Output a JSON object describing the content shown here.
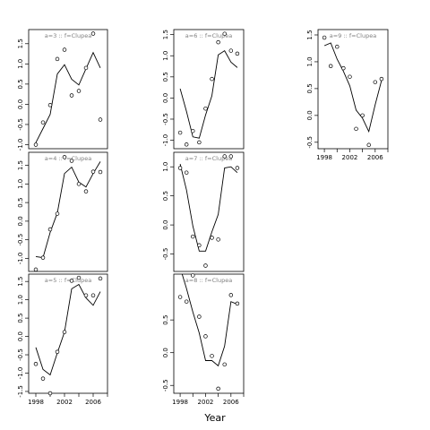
{
  "figure": {
    "xlabel": "Year"
  },
  "chart_data": [
    {
      "type": "line",
      "title": "a=3 :: f=Clupea",
      "xlim": [
        1997,
        2008
      ],
      "ylim": [
        -1.1,
        1.85
      ],
      "xticks": [
        1998,
        2002,
        2006
      ],
      "xtick_labels": [
        "1998",
        "2002",
        "2006"
      ],
      "show_xticks": false,
      "yticks": [
        -1.0,
        -0.5,
        0.0,
        0.5,
        1.0,
        1.5
      ],
      "ytick_labels": [
        "-1.0",
        "-0.5",
        "0.0",
        "0.5",
        "1.0",
        "1.5"
      ],
      "series": [
        {
          "type": "line",
          "x": [
            1998,
            1999,
            2000,
            2001,
            2002,
            2003,
            2004,
            2005,
            2006,
            2007
          ],
          "y": [
            -0.95,
            -0.6,
            -0.25,
            0.75,
            0.98,
            0.62,
            0.48,
            0.88,
            1.28,
            0.9
          ]
        },
        {
          "type": "scatter",
          "x": [
            1998,
            1999,
            2000,
            2001,
            2002,
            2003,
            2004,
            2005,
            2006,
            2007
          ],
          "y": [
            -1.0,
            -0.45,
            -0.02,
            1.12,
            1.35,
            0.22,
            0.33,
            0.9,
            1.75,
            -0.38
          ]
        }
      ]
    },
    {
      "type": "line",
      "title": "a=4 :: f=Clupea",
      "xlim": [
        1997,
        2008
      ],
      "ylim": [
        -1.35,
        1.85
      ],
      "xticks": [
        1998,
        2002,
        2006
      ],
      "xtick_labels": [
        "1998",
        "2002",
        "2006"
      ],
      "show_xticks": false,
      "yticks": [
        -1.0,
        -0.5,
        0.0,
        0.5,
        1.0,
        1.5
      ],
      "ytick_labels": [
        "-1.0",
        "-0.5",
        "0.0",
        "0.5",
        "1.0",
        "1.5"
      ],
      "series": [
        {
          "type": "line",
          "x": [
            1998,
            1999,
            2000,
            2001,
            2002,
            2003,
            2004,
            2005,
            2006,
            2007
          ],
          "y": [
            -0.95,
            -0.98,
            -0.3,
            0.22,
            1.28,
            1.45,
            1.05,
            0.92,
            1.28,
            1.6
          ]
        },
        {
          "type": "scatter",
          "x": [
            1998,
            1999,
            2000,
            2001,
            2002,
            2003,
            2004,
            2005,
            2006,
            2007
          ],
          "y": [
            -1.3,
            -0.98,
            -0.22,
            0.2,
            1.72,
            1.62,
            1.0,
            0.8,
            1.33,
            1.32
          ]
        }
      ]
    },
    {
      "type": "line",
      "title": "a=5 :: f=Clupea",
      "xlim": [
        1997,
        2008
      ],
      "ylim": [
        -1.55,
        1.7
      ],
      "xticks": [
        1998,
        2002,
        2006
      ],
      "xtick_labels": [
        "1998",
        "2002",
        "2006"
      ],
      "show_xticks": true,
      "yticks": [
        -1.5,
        -1.0,
        -0.5,
        0.0,
        0.5,
        1.0,
        1.5
      ],
      "ytick_labels": [
        "-1.5",
        "-1.0",
        "-0.5",
        "0.0",
        "0.5",
        "1.0",
        "1.5"
      ],
      "series": [
        {
          "type": "line",
          "x": [
            1998,
            1999,
            2000,
            2001,
            2002,
            2003,
            2004,
            2005,
            2006,
            2007
          ],
          "y": [
            -0.3,
            -0.9,
            -1.05,
            -0.45,
            0.12,
            1.3,
            1.42,
            1.05,
            0.85,
            1.22
          ]
        },
        {
          "type": "scatter",
          "x": [
            1998,
            1999,
            2000,
            2001,
            2002,
            2003,
            2004,
            2005,
            2006,
            2007
          ],
          "y": [
            -0.75,
            -1.15,
            -1.55,
            -0.42,
            0.12,
            1.52,
            1.6,
            1.12,
            1.12,
            1.58
          ]
        }
      ]
    },
    {
      "type": "line",
      "title": "a=6 :: f=Clupea",
      "xlim": [
        1997,
        2008
      ],
      "ylim": [
        -1.2,
        1.62
      ],
      "xticks": [
        1998,
        2002,
        2006
      ],
      "xtick_labels": [
        "1998",
        "2002",
        "2006"
      ],
      "show_xticks": false,
      "yticks": [
        -1.0,
        -0.5,
        0.0,
        0.5,
        1.0,
        1.5
      ],
      "ytick_labels": [
        "-1.0",
        "-0.5",
        "0.0",
        "0.5",
        "1.0",
        "1.5"
      ],
      "series": [
        {
          "type": "line",
          "x": [
            1998,
            1999,
            2000,
            2001,
            2002,
            2003,
            2004,
            2005,
            2006,
            2007
          ],
          "y": [
            0.22,
            -0.32,
            -0.92,
            -0.95,
            -0.4,
            0.05,
            1.02,
            1.12,
            0.85,
            0.72
          ]
        },
        {
          "type": "scatter",
          "x": [
            1998,
            1999,
            2000,
            2001,
            2002,
            2003,
            2004,
            2005,
            2006,
            2007
          ],
          "y": [
            -0.82,
            -1.1,
            -0.78,
            -1.05,
            -0.25,
            0.45,
            1.32,
            1.52,
            1.12,
            1.05
          ]
        }
      ]
    },
    {
      "type": "line",
      "title": "a=7 :: f=Clupea",
      "xlim": [
        1997,
        2008
      ],
      "ylim": [
        -0.8,
        1.25
      ],
      "xticks": [
        1998,
        2002,
        2006
      ],
      "xtick_labels": [
        "1998",
        "2002",
        "2006"
      ],
      "show_xticks": false,
      "yticks": [
        -0.5,
        0.0,
        0.5,
        1.0
      ],
      "ytick_labels": [
        "-0.5",
        "0.0",
        "0.5",
        "1.0"
      ],
      "series": [
        {
          "type": "line",
          "x": [
            1998,
            1999,
            2000,
            2001,
            2002,
            2003,
            2004,
            2005,
            2006,
            2007
          ],
          "y": [
            1.05,
            0.6,
            -0.02,
            -0.45,
            -0.45,
            -0.12,
            0.18,
            0.98,
            1.0,
            0.9
          ]
        },
        {
          "type": "scatter",
          "x": [
            1998,
            1999,
            2000,
            2001,
            2002,
            2003,
            2004,
            2005,
            2006,
            2007
          ],
          "y": [
            0.98,
            0.9,
            -0.2,
            -0.35,
            -0.7,
            -0.22,
            -0.25,
            1.18,
            1.18,
            0.98
          ]
        }
      ]
    },
    {
      "type": "line",
      "title": "a=8 :: f=Clupea",
      "xlim": [
        1997,
        2008
      ],
      "ylim": [
        -0.62,
        1.2
      ],
      "xticks": [
        1998,
        2002,
        2006
      ],
      "xtick_labels": [
        "1998",
        "2002",
        "2006"
      ],
      "show_xticks": true,
      "yticks": [
        -0.5,
        0.0,
        0.5
      ],
      "ytick_labels": [
        "-0.5",
        "0.0",
        "0.5"
      ],
      "series": [
        {
          "type": "line",
          "x": [
            1998,
            1999,
            2000,
            2001,
            2002,
            2003,
            2004,
            2005,
            2006,
            2007
          ],
          "y": [
            1.3,
            0.98,
            0.62,
            0.3,
            -0.12,
            -0.12,
            -0.2,
            0.1,
            0.78,
            0.74
          ]
        },
        {
          "type": "scatter",
          "x": [
            1998,
            1999,
            2000,
            2001,
            2002,
            2003,
            2004,
            2005,
            2006,
            2007
          ],
          "y": [
            0.85,
            0.78,
            1.18,
            0.55,
            0.25,
            -0.05,
            -0.55,
            -0.18,
            0.88,
            0.75
          ]
        }
      ]
    },
    {
      "type": "line",
      "title": "a=9 :: f=Clupea",
      "xlim": [
        1997,
        2008
      ],
      "ylim": [
        -0.62,
        1.6
      ],
      "xticks": [
        1998,
        2002,
        2006
      ],
      "xtick_labels": [
        "1998",
        "2002",
        "2006"
      ],
      "show_xticks": true,
      "yticks": [
        -0.5,
        0.0,
        0.5,
        1.0,
        1.5
      ],
      "ytick_labels": [
        "-0.5",
        "0.0",
        "0.5",
        "1.0",
        "1.5"
      ],
      "series": [
        {
          "type": "line",
          "x": [
            1998,
            1999,
            2000,
            2001,
            2002,
            2003,
            2004,
            2005,
            2006,
            2007
          ],
          "y": [
            1.3,
            1.35,
            1.05,
            0.82,
            0.55,
            0.1,
            -0.05,
            -0.3,
            0.2,
            0.65
          ]
        },
        {
          "type": "scatter",
          "x": [
            1998,
            1999,
            2000,
            2001,
            2002,
            2003,
            2004,
            2005,
            2006,
            2007
          ],
          "y": [
            1.45,
            0.92,
            1.28,
            0.88,
            0.72,
            -0.25,
            0.0,
            -0.55,
            0.62,
            0.68
          ]
        }
      ]
    }
  ]
}
